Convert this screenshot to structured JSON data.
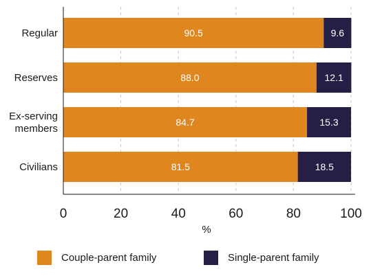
{
  "chart_data": {
    "type": "bar",
    "orientation": "horizontal",
    "stacked": true,
    "categories": [
      "Regular",
      "Reserves",
      "Ex-serving\nmembers",
      "Civilians"
    ],
    "series": [
      {
        "name": "Couple-parent family",
        "values": [
          90.5,
          88.0,
          84.7,
          81.5
        ],
        "color": "#E0861F",
        "label_color": "#ffffff"
      },
      {
        "name": "Single-parent family",
        "values": [
          9.6,
          12.1,
          15.3,
          18.5
        ],
        "color": "#261F45",
        "label_color": "#ffffff"
      }
    ],
    "xlabel": "%",
    "xlim": [
      0,
      100
    ],
    "xticks": [
      "0",
      "20",
      "40",
      "60",
      "80",
      "100"
    ],
    "grid": true,
    "legend_position": "bottom"
  }
}
